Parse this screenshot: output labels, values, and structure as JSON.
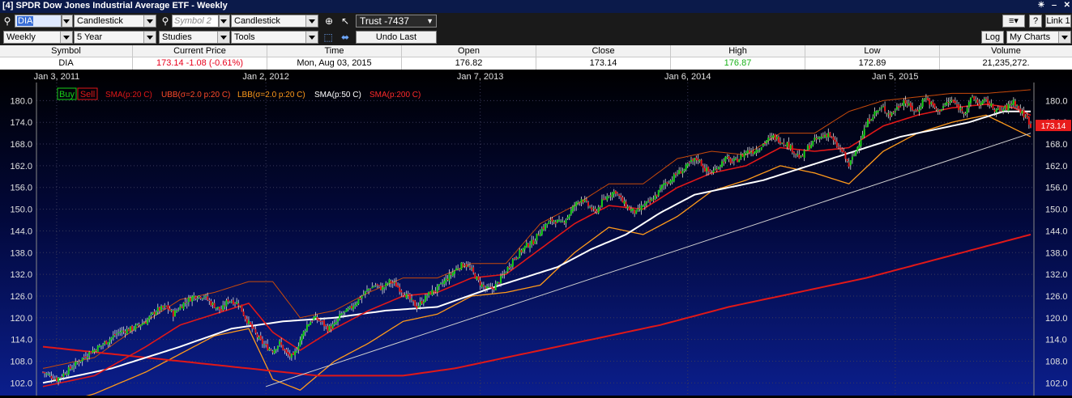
{
  "window": {
    "title": "[4] SPDR Dow Jones Industrial Average ETF - Weekly",
    "link_label": "Link 1",
    "help_label": "?"
  },
  "toolbar1": {
    "symbol_value": "DIA",
    "chart_type_1": "Candlestick",
    "symbol2_placeholder": "Symbol 2",
    "chart_type_2": "Candlestick",
    "account": "Trust -7437"
  },
  "toolbar2": {
    "period": "Weekly",
    "range": "5 Year",
    "studies": "Studies",
    "tools": "Tools",
    "undo_label": "Undo Last",
    "log_label": "Log",
    "my_charts": "My Charts"
  },
  "quote": {
    "headers": {
      "symbol": "Symbol",
      "current": "Current Price",
      "time": "Time",
      "open": "Open",
      "close": "Close",
      "high": "High",
      "low": "Low",
      "volume": "Volume"
    },
    "values": {
      "symbol": "DIA",
      "current": "173.14  -1.08 (-0.61%)",
      "time": "Mon, Aug 03, 2015",
      "open": "176.82",
      "close": "173.14",
      "high": "176.87",
      "low": "172.89",
      "volume": "21,235,272."
    },
    "colors": {
      "current": "#e8001c",
      "high": "#19b319"
    }
  },
  "chart_data": {
    "type": "candlestick",
    "x_tick_labels": [
      "Jan 3, 2011",
      "Jan 2, 2012",
      "Jan 7, 2013",
      "Jan 6, 2014",
      "Jan 5, 2015"
    ],
    "y_tick_labels": [
      "102.0",
      "108.0",
      "114.0",
      "120.0",
      "126.0",
      "132.0",
      "138.0",
      "144.0",
      "150.0",
      "156.0",
      "162.0",
      "168.0",
      "174.0",
      "180.0"
    ],
    "ylim": [
      98.5,
      185.0
    ],
    "last_price_label": "173.14",
    "legend": {
      "buy": "Buy",
      "sell": "Sell",
      "sma20": "SMA(p:20 C)",
      "ubb": "UBB(σ=2.0 p:20 C)",
      "lbb": "LBB(σ=2.0 p:20 C)",
      "sma50": "SMA(p:50 C)",
      "sma200": "SMA(p:200 C)"
    },
    "colors": {
      "up": "#18d018",
      "down": "#e01818",
      "sma20": "#e01818",
      "ubb": "#c84a0a",
      "lbb": "#ff9a1a",
      "sma50": "#ffffff",
      "sma200": "#e01818",
      "trendline": "#d0d0d0",
      "buy": "#18d018",
      "sell": "#e01818"
    },
    "close_path": [
      [
        0,
        105
      ],
      [
        8,
        103
      ],
      [
        16,
        106
      ],
      [
        26,
        110
      ],
      [
        36,
        113
      ],
      [
        44,
        116
      ],
      [
        52,
        117
      ],
      [
        60,
        119
      ],
      [
        66,
        122
      ],
      [
        72,
        123
      ],
      [
        76,
        121
      ],
      [
        82,
        124
      ],
      [
        88,
        126
      ],
      [
        94,
        126
      ],
      [
        98,
        124
      ],
      [
        104,
        122
      ],
      [
        108,
        125
      ],
      [
        114,
        124
      ],
      [
        118,
        120
      ],
      [
        122,
        117
      ],
      [
        126,
        114
      ],
      [
        130,
        112
      ],
      [
        134,
        111
      ],
      [
        138,
        113
      ],
      [
        142,
        110
      ],
      [
        146,
        109
      ],
      [
        150,
        114
      ],
      [
        154,
        118
      ],
      [
        158,
        120
      ],
      [
        162,
        119
      ],
      [
        166,
        117
      ],
      [
        170,
        118
      ],
      [
        174,
        121
      ],
      [
        178,
        122
      ],
      [
        182,
        124
      ],
      [
        186,
        126
      ],
      [
        190,
        128
      ],
      [
        194,
        129
      ],
      [
        198,
        128
      ],
      [
        202,
        130
      ],
      [
        206,
        129
      ],
      [
        210,
        127
      ],
      [
        214,
        125
      ],
      [
        218,
        123
      ],
      [
        222,
        125
      ],
      [
        226,
        127
      ],
      [
        230,
        128
      ],
      [
        234,
        130
      ],
      [
        238,
        132
      ],
      [
        242,
        134
      ],
      [
        246,
        135
      ],
      [
        250,
        133
      ],
      [
        254,
        130
      ],
      [
        258,
        128
      ],
      [
        262,
        128
      ],
      [
        266,
        130
      ],
      [
        270,
        133
      ],
      [
        274,
        136
      ],
      [
        278,
        138
      ],
      [
        282,
        140
      ],
      [
        286,
        141
      ],
      [
        290,
        144
      ],
      [
        294,
        146
      ],
      [
        298,
        147
      ],
      [
        302,
        146
      ],
      [
        306,
        148
      ],
      [
        310,
        151
      ],
      [
        314,
        153
      ],
      [
        318,
        151
      ],
      [
        322,
        149
      ],
      [
        326,
        152
      ],
      [
        330,
        154
      ],
      [
        334,
        155
      ],
      [
        338,
        152
      ],
      [
        342,
        150
      ],
      [
        346,
        149
      ],
      [
        350,
        151
      ],
      [
        354,
        152
      ],
      [
        358,
        154
      ],
      [
        362,
        157
      ],
      [
        366,
        158
      ],
      [
        370,
        160
      ],
      [
        374,
        161
      ],
      [
        378,
        163
      ],
      [
        382,
        164
      ],
      [
        386,
        161
      ],
      [
        390,
        160
      ],
      [
        394,
        162
      ],
      [
        398,
        164
      ],
      [
        402,
        163
      ],
      [
        406,
        164
      ],
      [
        410,
        166
      ],
      [
        414,
        166
      ],
      [
        418,
        167
      ],
      [
        422,
        169
      ],
      [
        426,
        170
      ],
      [
        430,
        169
      ],
      [
        434,
        168
      ],
      [
        438,
        166
      ],
      [
        442,
        164
      ],
      [
        446,
        167
      ],
      [
        450,
        169
      ],
      [
        454,
        170
      ],
      [
        458,
        171
      ],
      [
        462,
        168
      ],
      [
        466,
        166
      ],
      [
        470,
        162
      ],
      [
        474,
        166
      ],
      [
        478,
        171
      ],
      [
        482,
        175
      ],
      [
        486,
        177
      ],
      [
        490,
        178
      ],
      [
        494,
        176
      ],
      [
        498,
        178
      ],
      [
        502,
        180
      ],
      [
        506,
        178
      ],
      [
        510,
        177
      ],
      [
        514,
        181
      ],
      [
        518,
        179
      ],
      [
        522,
        177
      ],
      [
        526,
        179
      ],
      [
        530,
        180
      ],
      [
        534,
        178
      ],
      [
        538,
        177
      ],
      [
        542,
        181
      ],
      [
        546,
        179
      ],
      [
        550,
        180
      ],
      [
        554,
        178
      ],
      [
        558,
        177
      ],
      [
        562,
        178
      ],
      [
        566,
        180
      ],
      [
        570,
        177
      ],
      [
        574,
        175
      ],
      [
        576,
        173.14
      ]
    ],
    "ma_paths": {
      "sma20": [
        [
          0,
          101
        ],
        [
          30,
          104
        ],
        [
          60,
          112
        ],
        [
          80,
          118
        ],
        [
          100,
          121
        ],
        [
          120,
          124
        ],
        [
          134,
          116
        ],
        [
          150,
          111
        ],
        [
          170,
          117
        ],
        [
          190,
          122
        ],
        [
          210,
          126
        ],
        [
          230,
          127
        ],
        [
          250,
          131
        ],
        [
          270,
          132
        ],
        [
          290,
          139
        ],
        [
          310,
          146
        ],
        [
          330,
          151
        ],
        [
          350,
          150
        ],
        [
          370,
          156
        ],
        [
          390,
          160
        ],
        [
          410,
          162
        ],
        [
          430,
          167
        ],
        [
          450,
          166
        ],
        [
          470,
          167
        ],
        [
          490,
          173
        ],
        [
          510,
          176
        ],
        [
          530,
          178
        ],
        [
          550,
          179
        ],
        [
          566,
          178
        ],
        [
          576,
          176
        ]
      ],
      "sma50": [
        [
          0,
          102
        ],
        [
          40,
          106
        ],
        [
          80,
          112
        ],
        [
          110,
          117
        ],
        [
          140,
          119
        ],
        [
          170,
          120
        ],
        [
          200,
          122
        ],
        [
          230,
          123
        ],
        [
          260,
          128
        ],
        [
          280,
          131
        ],
        [
          300,
          134
        ],
        [
          320,
          139
        ],
        [
          340,
          143
        ],
        [
          360,
          149
        ],
        [
          380,
          154
        ],
        [
          400,
          156
        ],
        [
          420,
          158
        ],
        [
          440,
          161
        ],
        [
          460,
          164
        ],
        [
          480,
          167
        ],
        [
          500,
          170
        ],
        [
          520,
          172
        ],
        [
          540,
          174
        ],
        [
          560,
          177
        ],
        [
          576,
          177
        ]
      ],
      "sma200": [
        [
          0,
          112
        ],
        [
          60,
          109
        ],
        [
          120,
          106
        ],
        [
          160,
          104
        ],
        [
          190,
          104
        ],
        [
          210,
          104
        ],
        [
          240,
          106
        ],
        [
          280,
          110
        ],
        [
          320,
          114
        ],
        [
          360,
          118
        ],
        [
          400,
          123
        ],
        [
          440,
          127
        ],
        [
          480,
          131
        ],
        [
          520,
          136
        ],
        [
          560,
          141
        ],
        [
          576,
          143
        ]
      ],
      "ubb": [
        [
          0,
          106
        ],
        [
          30,
          109
        ],
        [
          60,
          119
        ],
        [
          80,
          125
        ],
        [
          100,
          127
        ],
        [
          120,
          130
        ],
        [
          134,
          130
        ],
        [
          150,
          120
        ],
        [
          170,
          122
        ],
        [
          190,
          127
        ],
        [
          210,
          131
        ],
        [
          230,
          131
        ],
        [
          250,
          135
        ],
        [
          270,
          135
        ],
        [
          290,
          146
        ],
        [
          310,
          151
        ],
        [
          330,
          157
        ],
        [
          350,
          157
        ],
        [
          370,
          164
        ],
        [
          390,
          166
        ],
        [
          410,
          165
        ],
        [
          430,
          171
        ],
        [
          450,
          171
        ],
        [
          470,
          177
        ],
        [
          490,
          180
        ],
        [
          510,
          181
        ],
        [
          530,
          182
        ],
        [
          550,
          182
        ],
        [
          576,
          183
        ]
      ],
      "lbb": [
        [
          0,
          95
        ],
        [
          30,
          99
        ],
        [
          60,
          105
        ],
        [
          80,
          110
        ],
        [
          100,
          115
        ],
        [
          120,
          117
        ],
        [
          134,
          103
        ],
        [
          150,
          100
        ],
        [
          170,
          108
        ],
        [
          190,
          113
        ],
        [
          210,
          119
        ],
        [
          230,
          121
        ],
        [
          250,
          126
        ],
        [
          270,
          127
        ],
        [
          290,
          129
        ],
        [
          310,
          138
        ],
        [
          330,
          145
        ],
        [
          350,
          143
        ],
        [
          370,
          148
        ],
        [
          390,
          155
        ],
        [
          410,
          158
        ],
        [
          430,
          162
        ],
        [
          450,
          160
        ],
        [
          470,
          157
        ],
        [
          490,
          166
        ],
        [
          510,
          171
        ],
        [
          530,
          174
        ],
        [
          550,
          176
        ],
        [
          576,
          170
        ]
      ]
    },
    "trendline": [
      [
        130,
        101
      ],
      [
        576,
        171
      ]
    ],
    "total_weeks": 576
  }
}
